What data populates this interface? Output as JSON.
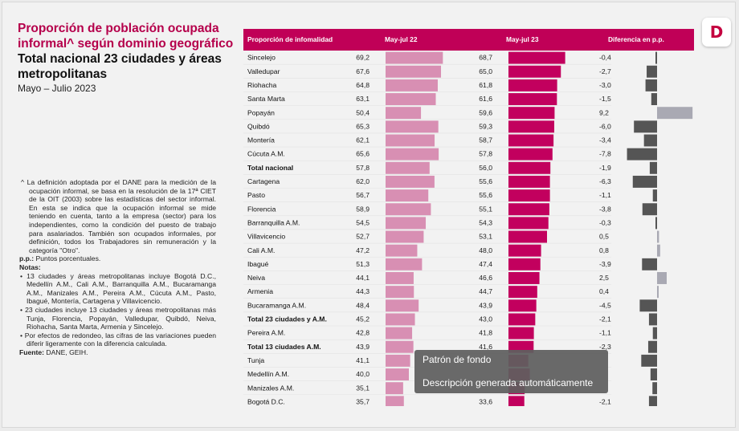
{
  "title": {
    "main": "Proporción de población ocupada informal^ según dominio geográfico",
    "sub": "Total nacional 23 ciudades y áreas metropolitanas",
    "period": "Mayo – Julio 2023"
  },
  "logo": {
    "icon": "dane-logo-icon",
    "letter": "D",
    "color": "#c4003f"
  },
  "notes": {
    "definition": "^ La definición adoptada por el DANE para la medición de la ocupación informal, se basa en la resolución de la 17ª CIET de la OIT (2003) sobre las estadísticas del sector informal. En esta se indica que la ocupación informal se mide teniendo en cuenta, tanto a la empresa (sector) para los independientes, como la condición del puesto de trabajo para asalariados. También son ocupados informales, por definición, todos los Trabajadores sin remuneración y la categoría \"Otro\".",
    "pp_label": "p.p.:",
    "pp_text": " Puntos porcentuales.",
    "notes_label": "Notas",
    "notes_colon": ":",
    "items": [
      "• 13 ciudades y áreas metropolitanas incluye Bogotá D.C., Medellín A.M., Cali A.M., Barranquilla A.M., Bucaramanga A.M., Manizales A.M., Pereira A.M., Cúcuta A.M., Pasto, Ibagué, Montería, Cartagena y Villavicencio.",
      "• 23 ciudades incluye 13 ciudades y áreas metropolitanas más Tunja, Florencia, Popayán, Valledupar, Quibdó, Neiva, Riohacha, Santa Marta, Armenia y Sincelejo.",
      "• Por efectos de redondeo, las cifras de las variaciones pueden diferir ligeramente con la diferencia calculada."
    ],
    "source_label": "Fuente:",
    "source_text": " DANE, GEIH."
  },
  "tooltip": {
    "line1": "Patrón de fondo",
    "line2": "Descripción generada automáticamente"
  },
  "chart_data": {
    "type": "table",
    "headers": [
      "Proporción de infomalidad",
      "May-jul 22",
      "May-jul 23",
      "Diferencia en p.p."
    ],
    "header_color": "#c00057",
    "colors": {
      "prev": "#d88fb3",
      "curr": "#c2005e",
      "diff_neg": "#555555",
      "diff_pos": "#a9a9b3"
    },
    "rows": [
      {
        "name": "Sincelejo",
        "v22": "69,2",
        "v23": "68,7",
        "diff": "-0,4",
        "bold": false
      },
      {
        "name": "Valledupar",
        "v22": "67,6",
        "v23": "65,0",
        "diff": "-2,7",
        "bold": false
      },
      {
        "name": "Riohacha",
        "v22": "64,8",
        "v23": "61,8",
        "diff": "-3,0",
        "bold": false
      },
      {
        "name": "Santa Marta",
        "v22": "63,1",
        "v23": "61,6",
        "diff": "-1,5",
        "bold": false
      },
      {
        "name": "Popayán",
        "v22": "50,4",
        "v23": "59,6",
        "diff": "9,2",
        "bold": false
      },
      {
        "name": "Quibdó",
        "v22": "65,3",
        "v23": "59,3",
        "diff": "-6,0",
        "bold": false
      },
      {
        "name": "Montería",
        "v22": "62,1",
        "v23": "58,7",
        "diff": "-3,4",
        "bold": false
      },
      {
        "name": "Cúcuta A.M.",
        "v22": "65,6",
        "v23": "57,8",
        "diff": "-7,8",
        "bold": false
      },
      {
        "name": "Total nacional",
        "v22": "57,8",
        "v23": "56,0",
        "diff": "-1,9",
        "bold": true
      },
      {
        "name": "Cartagena",
        "v22": "62,0",
        "v23": "55,6",
        "diff": "-6,3",
        "bold": false
      },
      {
        "name": "Pasto",
        "v22": "56,7",
        "v23": "55,6",
        "diff": "-1,1",
        "bold": false
      },
      {
        "name": "Florencia",
        "v22": "58,9",
        "v23": "55,1",
        "diff": "-3,8",
        "bold": false
      },
      {
        "name": "Barranquilla A.M.",
        "v22": "54,5",
        "v23": "54,3",
        "diff": "-0,3",
        "bold": false
      },
      {
        "name": "Villavicencio",
        "v22": "52,7",
        "v23": "53,1",
        "diff": "0,5",
        "bold": false
      },
      {
        "name": "Cali A.M.",
        "v22": "47,2",
        "v23": "48,0",
        "diff": "0,8",
        "bold": false
      },
      {
        "name": "Ibagué",
        "v22": "51,3",
        "v23": "47,4",
        "diff": "-3,9",
        "bold": false
      },
      {
        "name": "Neiva",
        "v22": "44,1",
        "v23": "46,6",
        "diff": "2,5",
        "bold": false
      },
      {
        "name": "Armenia",
        "v22": "44,3",
        "v23": "44,7",
        "diff": "0,4",
        "bold": false
      },
      {
        "name": "Bucaramanga A.M.",
        "v22": "48,4",
        "v23": "43,9",
        "diff": "-4,5",
        "bold": false
      },
      {
        "name": "Total 23 ciudades y A.M.",
        "v22": "45,2",
        "v23": "43,0",
        "diff": "-2,1",
        "bold": true
      },
      {
        "name": "Pereira A.M.",
        "v22": "42,8",
        "v23": "41,8",
        "diff": "-1,1",
        "bold": false
      },
      {
        "name": "Total 13 ciudades A.M.",
        "v22": "43,9",
        "v23": "41,6",
        "diff": "-2,3",
        "bold": true
      },
      {
        "name": "Tunja",
        "v22": "41,1",
        "v23": "",
        "diff": "",
        "bold": false
      },
      {
        "name": "Medellín A.M.",
        "v22": "40,0",
        "v23": "",
        "diff": "",
        "bold": false
      },
      {
        "name": "Manizales A.M.",
        "v22": "35,1",
        "v23": "",
        "diff": "",
        "bold": false
      },
      {
        "name": "Bogotá D.C.",
        "v22": "35,7",
        "v23": "33,6",
        "diff": "-2,1",
        "bold": false
      }
    ],
    "hidden_bar_values": {
      "Tunja": [
        37.0,
        -4.1
      ],
      "Medellín A.M.": [
        38.3,
        -1.7
      ],
      "Manizales A.M.": [
        33.9,
        -1.2
      ]
    }
  }
}
